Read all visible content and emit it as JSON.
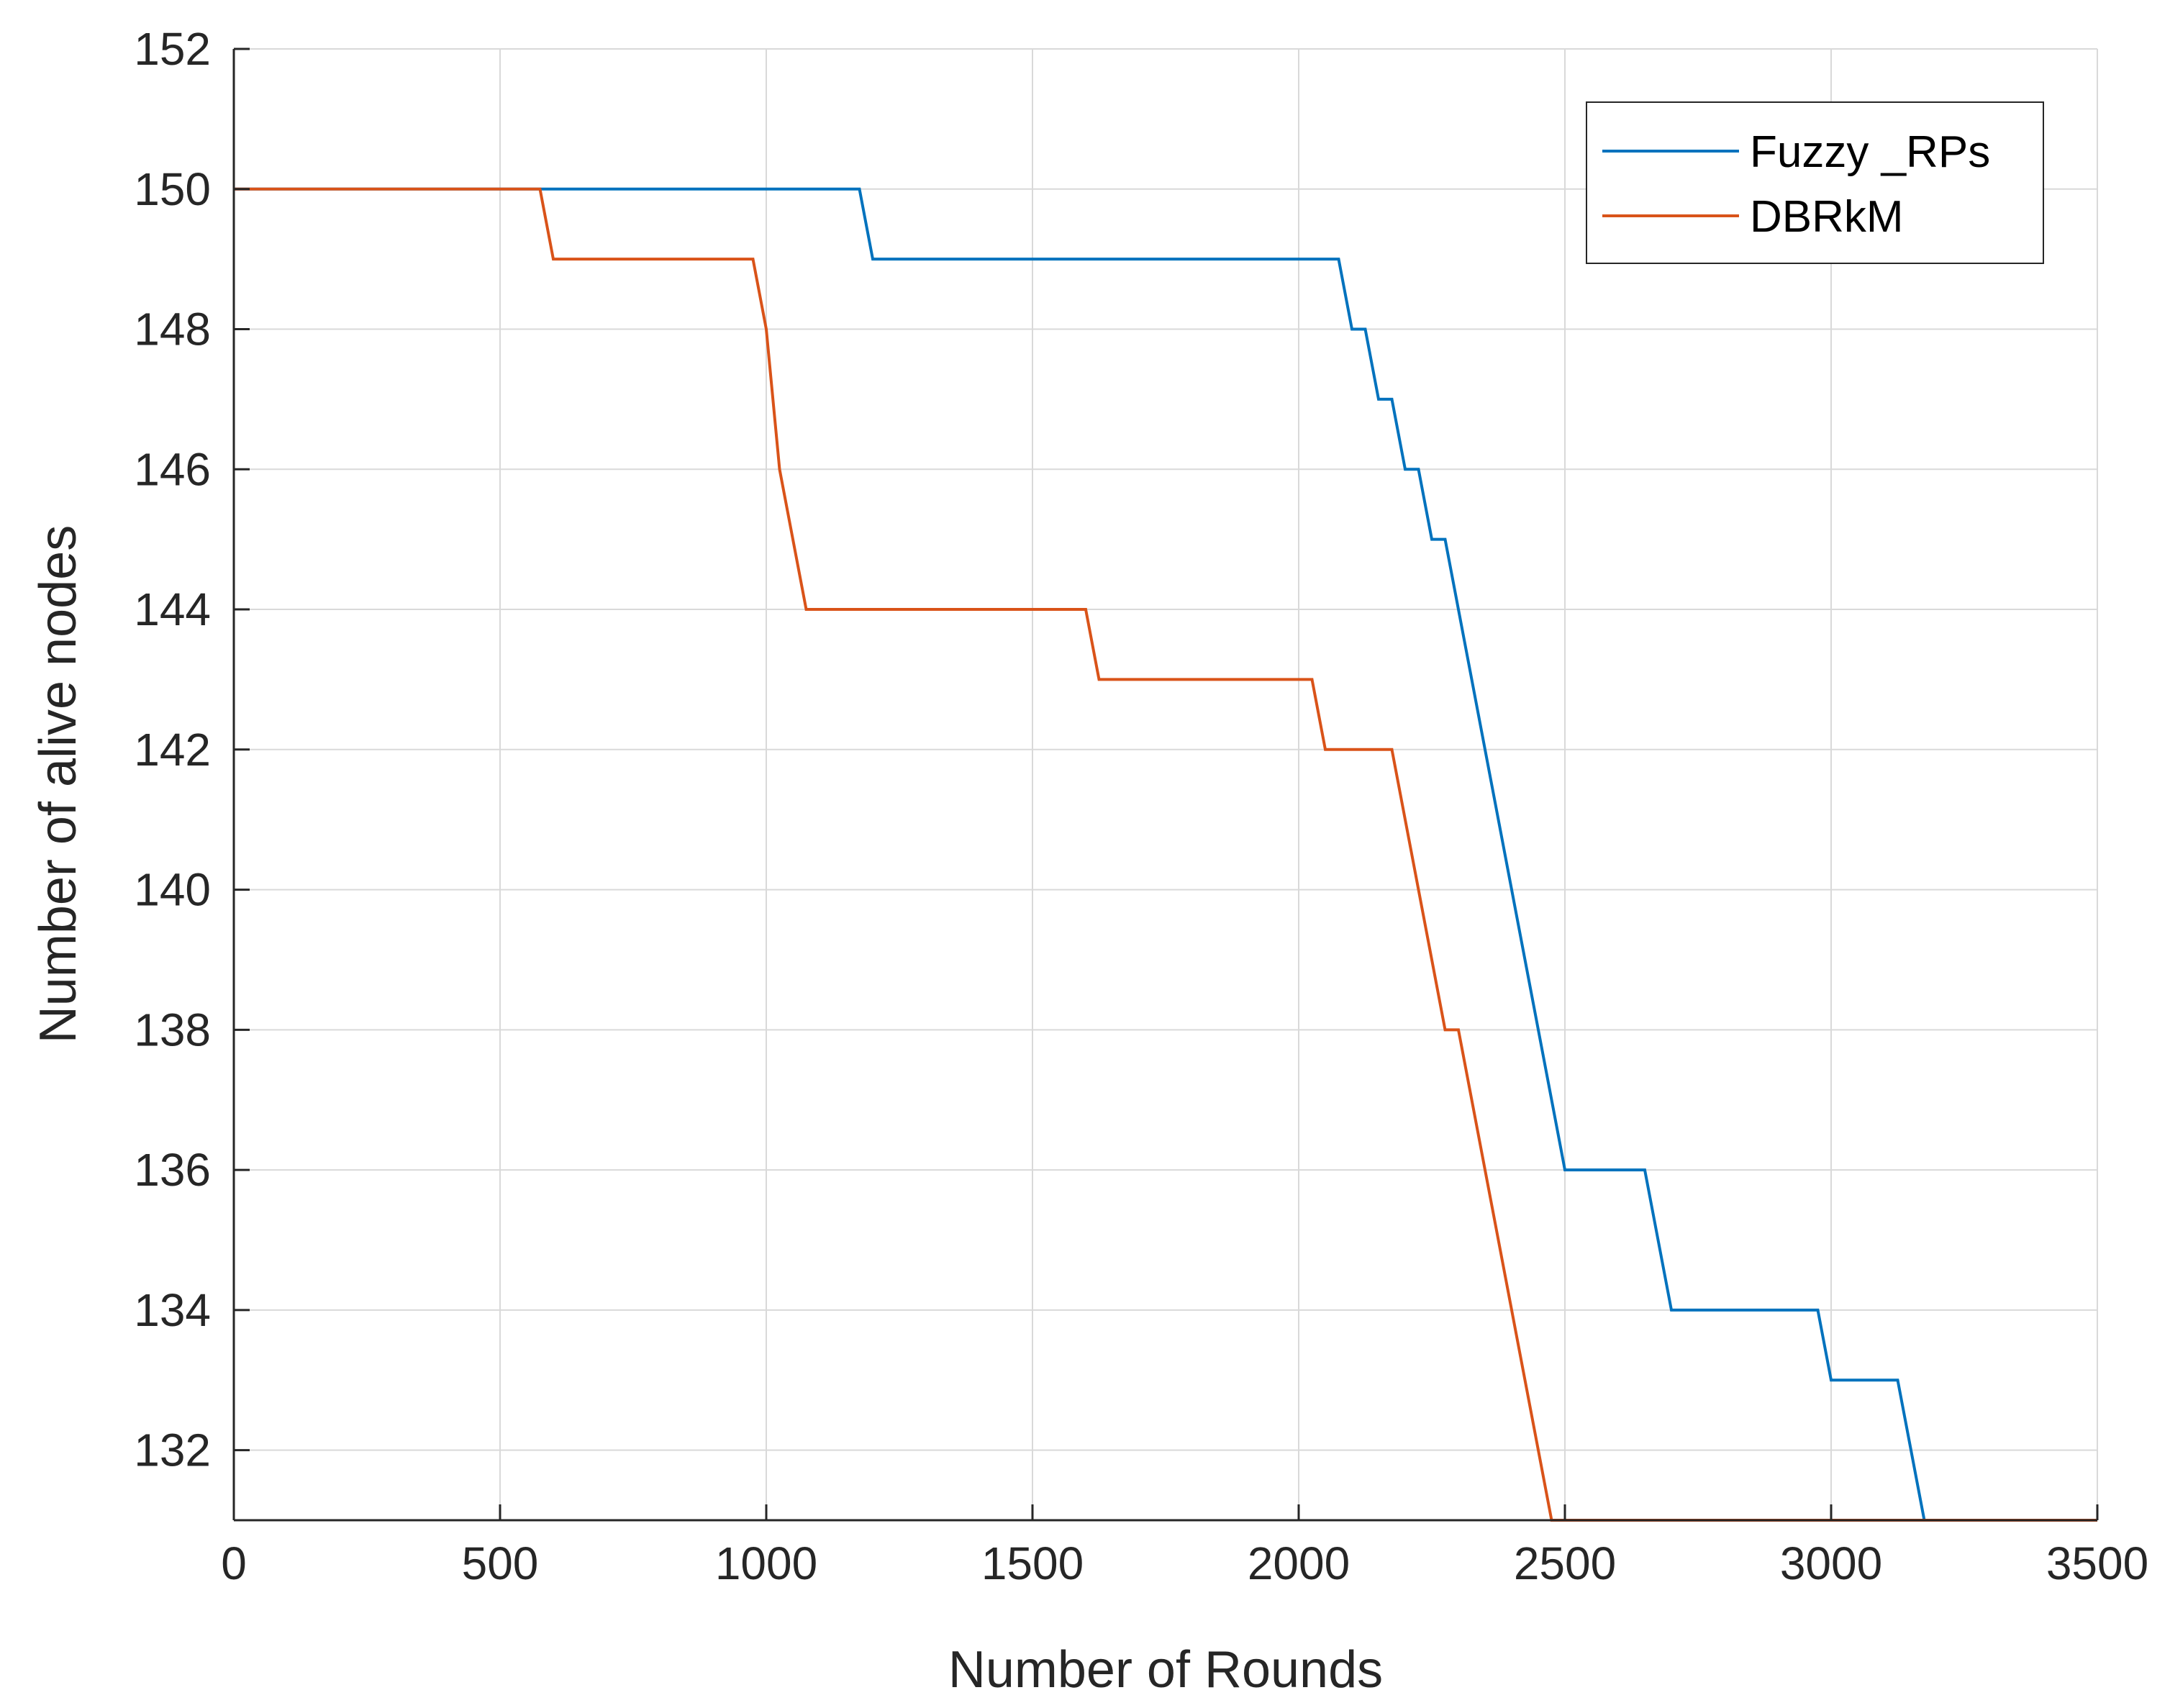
{
  "chart_data": {
    "type": "line",
    "title": "",
    "xlabel": "Number of Rounds",
    "ylabel": "Number of alive nodes",
    "xlim": [
      0,
      3500
    ],
    "ylim": [
      131,
      152
    ],
    "xticks": [
      0,
      500,
      1000,
      1500,
      2000,
      2500,
      3000,
      3500
    ],
    "yticks": [
      132,
      134,
      136,
      138,
      140,
      142,
      144,
      146,
      148,
      150,
      152
    ],
    "xtick_labels": [
      "0",
      "500",
      "1000",
      "1500",
      "2000",
      "2500",
      "3000",
      "3500"
    ],
    "ytick_labels": [
      "132",
      "134",
      "136",
      "138",
      "140",
      "142",
      "144",
      "146",
      "148",
      "150",
      "152"
    ],
    "grid": true,
    "legend_position": "top-right",
    "series": [
      {
        "name": "Fuzzy _RPs",
        "color": "#0072BD",
        "x": [
          0,
          1175,
          1200,
          2075,
          2100,
          2125,
          2150,
          2175,
          2200,
          2225,
          2250,
          2275,
          2500,
          2650,
          2700,
          2975,
          3000,
          3125,
          3175,
          3500
        ],
        "y": [
          150,
          150,
          149,
          149,
          148,
          148,
          147,
          147,
          146,
          146,
          145,
          145,
          136,
          136,
          134,
          134,
          133,
          133,
          131,
          131
        ]
      },
      {
        "name": "DBRkM",
        "color": "#D95319",
        "x": [
          0,
          575,
          600,
          975,
          1000,
          1025,
          1075,
          1600,
          1625,
          2025,
          2050,
          2175,
          2275,
          2300,
          2475,
          3500
        ],
        "y": [
          150,
          150,
          149,
          149,
          148,
          146,
          144,
          144,
          143,
          143,
          142,
          142,
          138,
          138,
          131,
          131
        ]
      }
    ]
  }
}
